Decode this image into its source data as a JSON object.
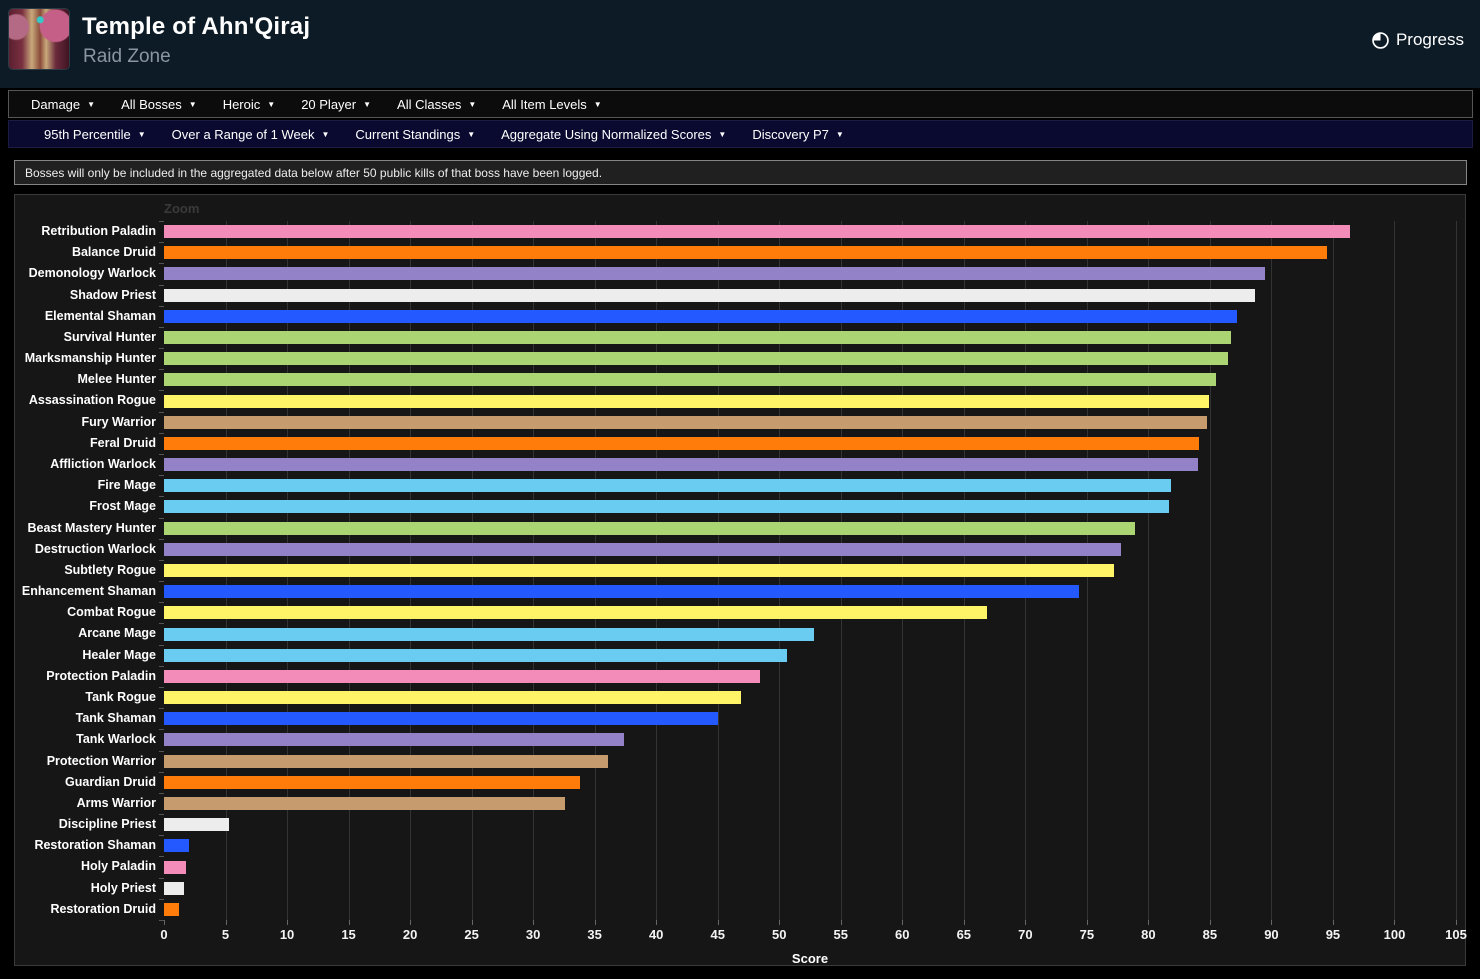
{
  "header": {
    "title": "Temple of Ahn'Qiraj",
    "subtitle": "Raid Zone",
    "progress_label": "Progress",
    "zone_icon": "ahn-qiraj-zone-icon"
  },
  "toolbar_primary": {
    "items": [
      {
        "label": "Damage"
      },
      {
        "label": "All Bosses"
      },
      {
        "label": "Heroic"
      },
      {
        "label": "20 Player"
      },
      {
        "label": "All Classes"
      },
      {
        "label": "All Item Levels"
      }
    ]
  },
  "toolbar_secondary": {
    "items": [
      {
        "label": "95th Percentile"
      },
      {
        "label": "Over a Range of 1 Week"
      },
      {
        "label": "Current Standings"
      },
      {
        "label": "Aggregate Using Normalized Scores"
      },
      {
        "label": "Discovery P7"
      }
    ]
  },
  "notice": "Bosses will only be included in the aggregated data below after 50 public kills of that boss have been logged.",
  "chart_data": {
    "type": "bar",
    "orientation": "horizontal",
    "zoom_label": "Zoom",
    "xlabel": "Score",
    "xlim": [
      0,
      105
    ],
    "tick_step": 5,
    "grid": true,
    "legend": "none",
    "categories": [
      "Retribution Paladin",
      "Balance Druid",
      "Demonology Warlock",
      "Shadow Priest",
      "Elemental Shaman",
      "Survival Hunter",
      "Marksmanship Hunter",
      "Melee Hunter",
      "Assassination Rogue",
      "Fury Warrior",
      "Feral Druid",
      "Affliction Warlock",
      "Fire Mage",
      "Frost Mage",
      "Beast Mastery Hunter",
      "Destruction Warlock",
      "Subtlety Rogue",
      "Enhancement Shaman",
      "Combat Rogue",
      "Arcane Mage",
      "Healer Mage",
      "Protection Paladin",
      "Tank Rogue",
      "Tank Shaman",
      "Tank Warlock",
      "Protection Warrior",
      "Guardian Druid",
      "Arms Warrior",
      "Discipline Priest",
      "Restoration Shaman",
      "Holy Paladin",
      "Holy Priest",
      "Restoration Druid"
    ],
    "values": [
      96.4,
      94.5,
      89.5,
      88.7,
      87.2,
      86.7,
      86.5,
      85.5,
      84.9,
      84.8,
      84.1,
      84.0,
      81.8,
      81.7,
      78.9,
      77.8,
      77.2,
      74.4,
      66.9,
      52.8,
      50.6,
      48.4,
      46.9,
      45.0,
      37.4,
      36.1,
      33.8,
      32.6,
      5.3,
      2.0,
      1.8,
      1.6,
      1.2
    ],
    "bar_colors": [
      "#F48CBA",
      "#FF7C0A",
      "#9482C9",
      "#EDEDED",
      "#2459FF",
      "#ABD473",
      "#ABD473",
      "#ABD473",
      "#FFF468",
      "#C69B6D",
      "#FF7C0A",
      "#9482C9",
      "#69CCF0",
      "#69CCF0",
      "#ABD473",
      "#9482C9",
      "#FFF468",
      "#2459FF",
      "#FFF468",
      "#69CCF0",
      "#69CCF0",
      "#F48CBA",
      "#FFF468",
      "#2459FF",
      "#9482C9",
      "#C69B6D",
      "#FF7C0A",
      "#C69B6D",
      "#EDEDED",
      "#2459FF",
      "#F48CBA",
      "#EDEDED",
      "#FF7C0A"
    ]
  },
  "colors": {
    "header_bg": "#0c1b26",
    "toolbar_primary_bg": "#0c0c0c",
    "toolbar_secondary_bg": "#0a0a30",
    "notice_bg": "#202020",
    "chart_bg": "#161616",
    "gridline": "#333333",
    "page_bg": "#000000"
  }
}
